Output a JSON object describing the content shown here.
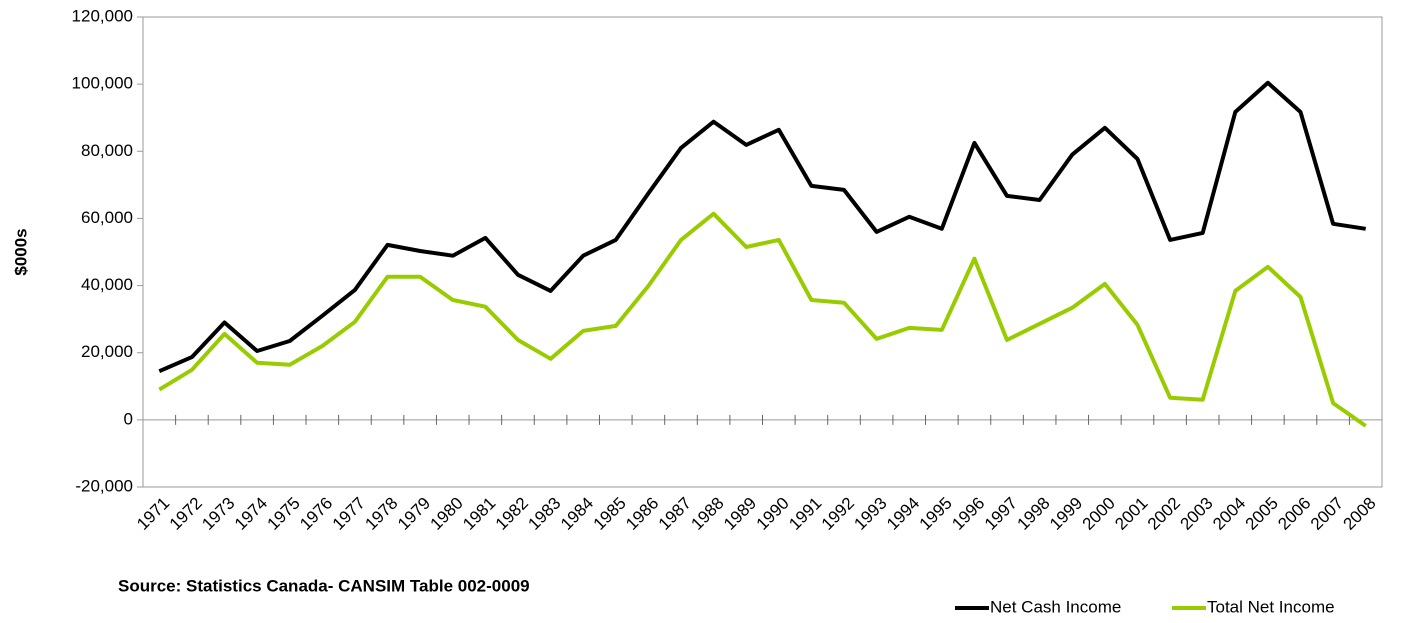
{
  "chart_data": {
    "type": "line",
    "y_label": "$000s",
    "source": "Source: Statistics Canada- CANSIM Table 002-0009",
    "categories": [
      "1971",
      "1972",
      "1973",
      "1974",
      "1975",
      "1976",
      "1977",
      "1978",
      "1979",
      "1980",
      "1981",
      "1982",
      "1983",
      "1984",
      "1985",
      "1986",
      "1987",
      "1988",
      "1989",
      "1990",
      "1991",
      "1992",
      "1993",
      "1994",
      "1995",
      "1996",
      "1997",
      "1998",
      "1999",
      "2000",
      "2001",
      "2002",
      "2003",
      "2004",
      "2005",
      "2006",
      "2007",
      "2008"
    ],
    "series": [
      {
        "name": "Net Cash Income",
        "color": "#000000",
        "values": [
          14500,
          18700,
          29000,
          20500,
          23500,
          31000,
          38700,
          52100,
          50300,
          48900,
          54200,
          43200,
          38400,
          48900,
          53600,
          67500,
          81000,
          88800,
          81900,
          86400,
          69700,
          68500,
          56000,
          60500,
          56900,
          82500,
          66700,
          65500,
          79000,
          87000,
          77700,
          53600,
          55700,
          91700,
          100400,
          91700,
          58400,
          56900
        ]
      },
      {
        "name": "Total Net Income",
        "color": "#99cc00",
        "values": [
          9000,
          14900,
          25600,
          17000,
          16400,
          22000,
          29200,
          42600,
          42600,
          35700,
          33700,
          23800,
          18200,
          26500,
          28000,
          39900,
          53600,
          61400,
          51500,
          53600,
          35700,
          34900,
          24100,
          27400,
          26800,
          48000,
          23800,
          28600,
          33400,
          40500,
          28300,
          6600,
          6000,
          38400,
          45600,
          36600,
          5000,
          -1800
        ]
      }
    ],
    "ylim": [
      -20000,
      120000
    ],
    "yticks": [
      {
        "value": -20000,
        "label": "-20,000"
      },
      0,
      {
        "value": 20000,
        "label": "20,000"
      },
      {
        "value": 40000,
        "label": "40,000"
      },
      {
        "value": 60000,
        "label": "60,000"
      },
      {
        "value": 80000,
        "label": "80,000"
      },
      {
        "value": 100000,
        "label": "100,000"
      },
      {
        "value": 120000,
        "label": "120,000"
      }
    ],
    "grid": false,
    "legend": "bottom-right"
  }
}
